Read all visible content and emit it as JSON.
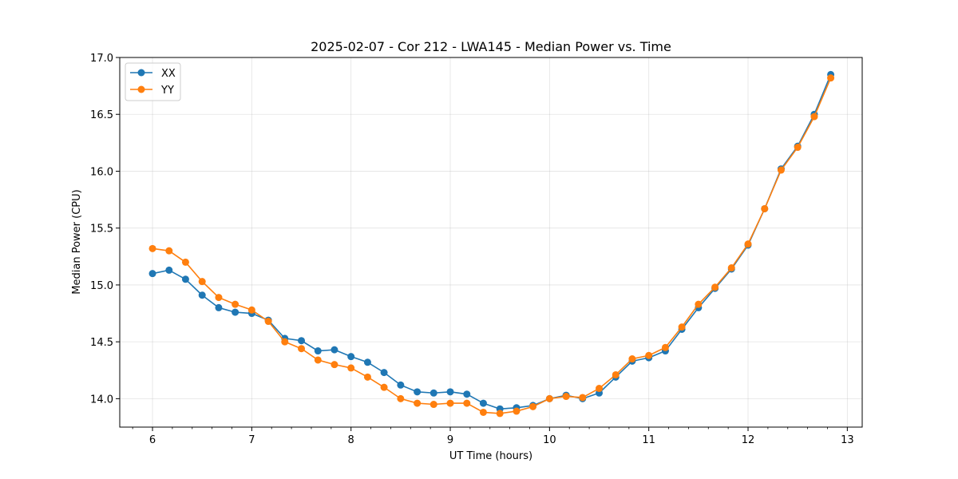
{
  "chart_data": {
    "type": "line",
    "title": "2025-02-07 - Cor 212 - LWA145 - Median Power vs. Time",
    "xlabel": "UT Time (hours)",
    "ylabel": "Median Power (CPU)",
    "xlim": [
      5.67,
      13.15
    ],
    "ylim": [
      13.75,
      17.0
    ],
    "xticks": [
      6,
      7,
      8,
      9,
      10,
      11,
      12,
      13
    ],
    "xtick_labels": [
      "6",
      "7",
      "8",
      "9",
      "10",
      "11",
      "12",
      "13"
    ],
    "xminor_step": 0.2,
    "yticks": [
      14.0,
      14.5,
      15.0,
      15.5,
      16.0,
      16.5,
      17.0
    ],
    "ytick_labels": [
      "14.0",
      "14.5",
      "15.0",
      "15.5",
      "16.0",
      "16.5",
      "17.0"
    ],
    "grid": true,
    "legend": "top-left",
    "x": [
      6.0,
      6.167,
      6.333,
      6.5,
      6.667,
      6.833,
      7.0,
      7.167,
      7.333,
      7.5,
      7.667,
      7.833,
      8.0,
      8.167,
      8.333,
      8.5,
      8.667,
      8.833,
      9.0,
      9.167,
      9.333,
      9.5,
      9.667,
      9.833,
      10.0,
      10.167,
      10.333,
      10.5,
      10.667,
      10.833,
      11.0,
      11.167,
      11.333,
      11.5,
      11.667,
      11.833,
      12.0,
      12.167,
      12.333,
      12.5,
      12.667,
      12.833
    ],
    "series": [
      {
        "name": "XX",
        "color": "#1f77b4",
        "values": [
          15.1,
          15.13,
          15.05,
          14.91,
          14.8,
          14.76,
          14.75,
          14.69,
          14.53,
          14.51,
          14.42,
          14.43,
          14.37,
          14.32,
          14.23,
          14.12,
          14.06,
          14.05,
          14.06,
          14.04,
          13.96,
          13.91,
          13.92,
          13.94,
          14.0,
          14.03,
          14.0,
          14.05,
          14.19,
          14.33,
          14.36,
          14.42,
          14.61,
          14.8,
          14.97,
          15.14,
          15.35,
          15.67,
          16.02,
          16.22,
          16.5,
          16.85
        ]
      },
      {
        "name": "YY",
        "color": "#ff7f0e",
        "values": [
          15.32,
          15.3,
          15.2,
          15.03,
          14.89,
          14.83,
          14.78,
          14.68,
          14.5,
          14.44,
          14.34,
          14.3,
          14.27,
          14.19,
          14.1,
          14.0,
          13.96,
          13.95,
          13.96,
          13.96,
          13.88,
          13.87,
          13.89,
          13.93,
          14.0,
          14.02,
          14.01,
          14.09,
          14.21,
          14.35,
          14.38,
          14.45,
          14.63,
          14.83,
          14.98,
          15.15,
          15.36,
          15.67,
          16.01,
          16.21,
          16.48,
          16.82
        ]
      }
    ]
  }
}
